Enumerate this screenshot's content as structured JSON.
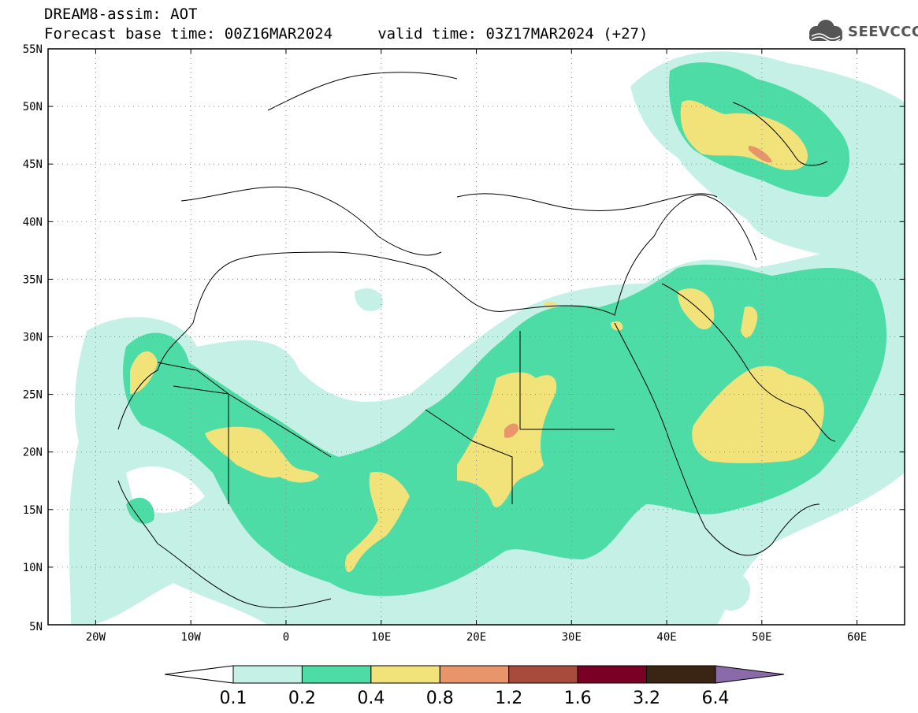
{
  "header": {
    "line1": "DREAM8-assim: AOT",
    "line2": "Forecast base time: 00Z16MAR2024     valid time: 03Z17MAR2024 (+27)",
    "logo_text": "SEEVCCC"
  },
  "map": {
    "lon_range": [
      -25,
      65
    ],
    "lat_range": [
      5,
      55
    ],
    "lon_ticks": [
      {
        "value": -20,
        "label": "20W"
      },
      {
        "value": -10,
        "label": "10W"
      },
      {
        "value": 0,
        "label": "0"
      },
      {
        "value": 10,
        "label": "10E"
      },
      {
        "value": 20,
        "label": "20E"
      },
      {
        "value": 30,
        "label": "30E"
      },
      {
        "value": 40,
        "label": "40E"
      },
      {
        "value": 50,
        "label": "50E"
      },
      {
        "value": 60,
        "label": "60E"
      }
    ],
    "lat_ticks": [
      {
        "value": 55,
        "label": "55N"
      },
      {
        "value": 50,
        "label": "50N"
      },
      {
        "value": 45,
        "label": "45N"
      },
      {
        "value": 40,
        "label": "40N"
      },
      {
        "value": 35,
        "label": "35N"
      },
      {
        "value": 30,
        "label": "30N"
      },
      {
        "value": 25,
        "label": "25N"
      },
      {
        "value": 20,
        "label": "20N"
      },
      {
        "value": 15,
        "label": "15N"
      },
      {
        "value": 10,
        "label": "10N"
      }
    ],
    "bottom_left_lat_label": "5N",
    "grid": "dotted"
  },
  "colorbar": {
    "levels": [
      "0.1",
      "0.2",
      "0.4",
      "0.8",
      "1.2",
      "1.6",
      "3.2",
      "6.4"
    ],
    "colors": [
      "#ffffff",
      "#c4f0e6",
      "#4ddca6",
      "#f2e27a",
      "#e8956b",
      "#a84a3c",
      "#7a0025",
      "#3a2514",
      "#8a6aa8"
    ]
  },
  "legend_colors": {
    "low": "#c4f0e6",
    "mid": "#4ddca6",
    "high": "#f2e27a",
    "very_high": "#e8956b",
    "coast": "#000000"
  }
}
